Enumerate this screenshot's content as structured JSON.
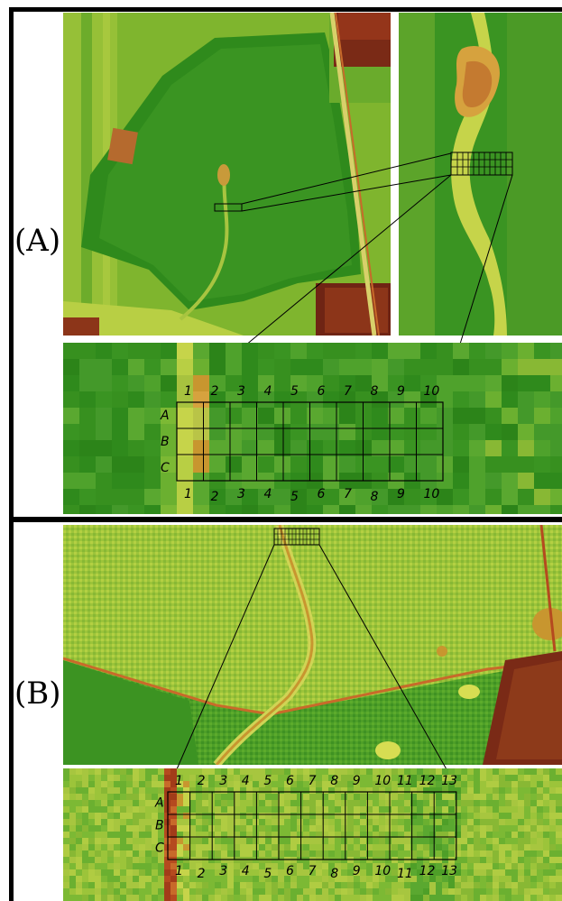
{
  "panels": [
    {
      "label": "(A)",
      "rows": [
        "A",
        "B",
        "C"
      ],
      "columns": [
        "1",
        "2",
        "3",
        "4",
        "5",
        "6",
        "7",
        "8",
        "9",
        "10"
      ]
    },
    {
      "label": "(B)",
      "rows": [
        "A",
        "B",
        "C"
      ],
      "columns": [
        "1",
        "2",
        "3",
        "4",
        "5",
        "6",
        "7",
        "8",
        "9",
        "10",
        "11",
        "12",
        "13"
      ]
    }
  ],
  "colors": {
    "dark_green": "#2f8a1c",
    "mid_green": "#5fa62a",
    "light_green": "#9cc43a",
    "yellow": "#e2dd4a",
    "orange": "#c8962f",
    "brown": "#7a2a16",
    "frame": "#000000"
  }
}
